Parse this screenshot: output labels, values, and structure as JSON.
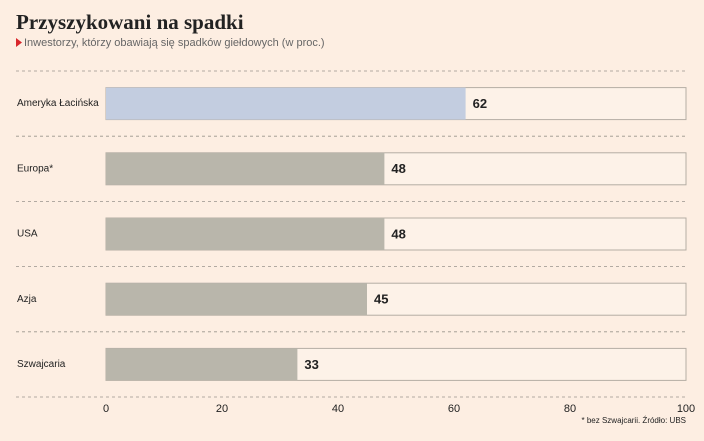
{
  "chart_data": {
    "type": "bar",
    "orientation": "horizontal",
    "title": "Przyszykowani na spadki",
    "subtitle": "Inwestorzy, którzy obawiają się spadków giełdowych (w proc.)",
    "categories": [
      "Ameryka Łacińska",
      "Europa*",
      "USA",
      "Azja",
      "Szwajcaria"
    ],
    "values": [
      62,
      48,
      48,
      45,
      33
    ],
    "colors": [
      "#c3cde0",
      "#b9b6ab",
      "#b9b6ab",
      "#b9b6ab",
      "#b9b6ab"
    ],
    "xlim": [
      0,
      100
    ],
    "xticks": [
      0,
      20,
      40,
      60,
      80,
      100
    ],
    "note": "* bez Szwajcarii. Źródło: UBS"
  }
}
